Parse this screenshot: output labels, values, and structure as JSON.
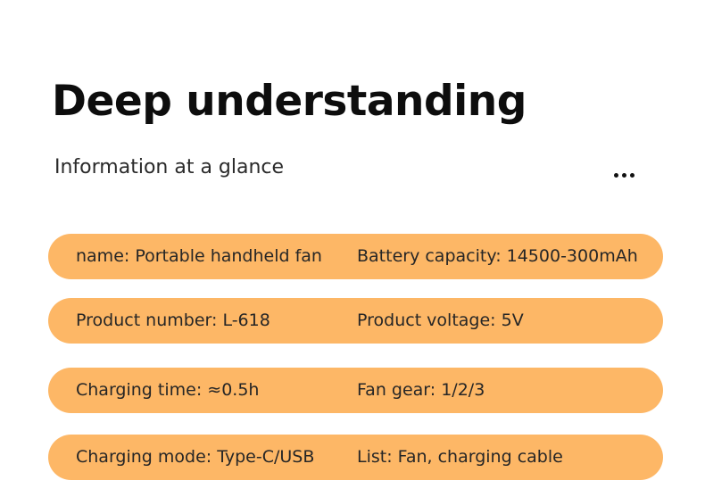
{
  "header": {
    "title": "Deep understanding",
    "subtitle": "Information at a glance"
  },
  "colors": {
    "pill_background": "#fdb766",
    "text": "#262626"
  },
  "rows": [
    {
      "left": "name: Portable handheld fan",
      "right": "Battery capacity: 14500-300mAh"
    },
    {
      "left": "Product number: L-618",
      "right": "Product voltage: 5V"
    },
    {
      "left": "Charging time: ≈0.5h",
      "right": "Fan gear: 1/2/3"
    },
    {
      "left": "Charging mode: Type-C/USB",
      "right": "List: Fan, charging cable"
    }
  ]
}
